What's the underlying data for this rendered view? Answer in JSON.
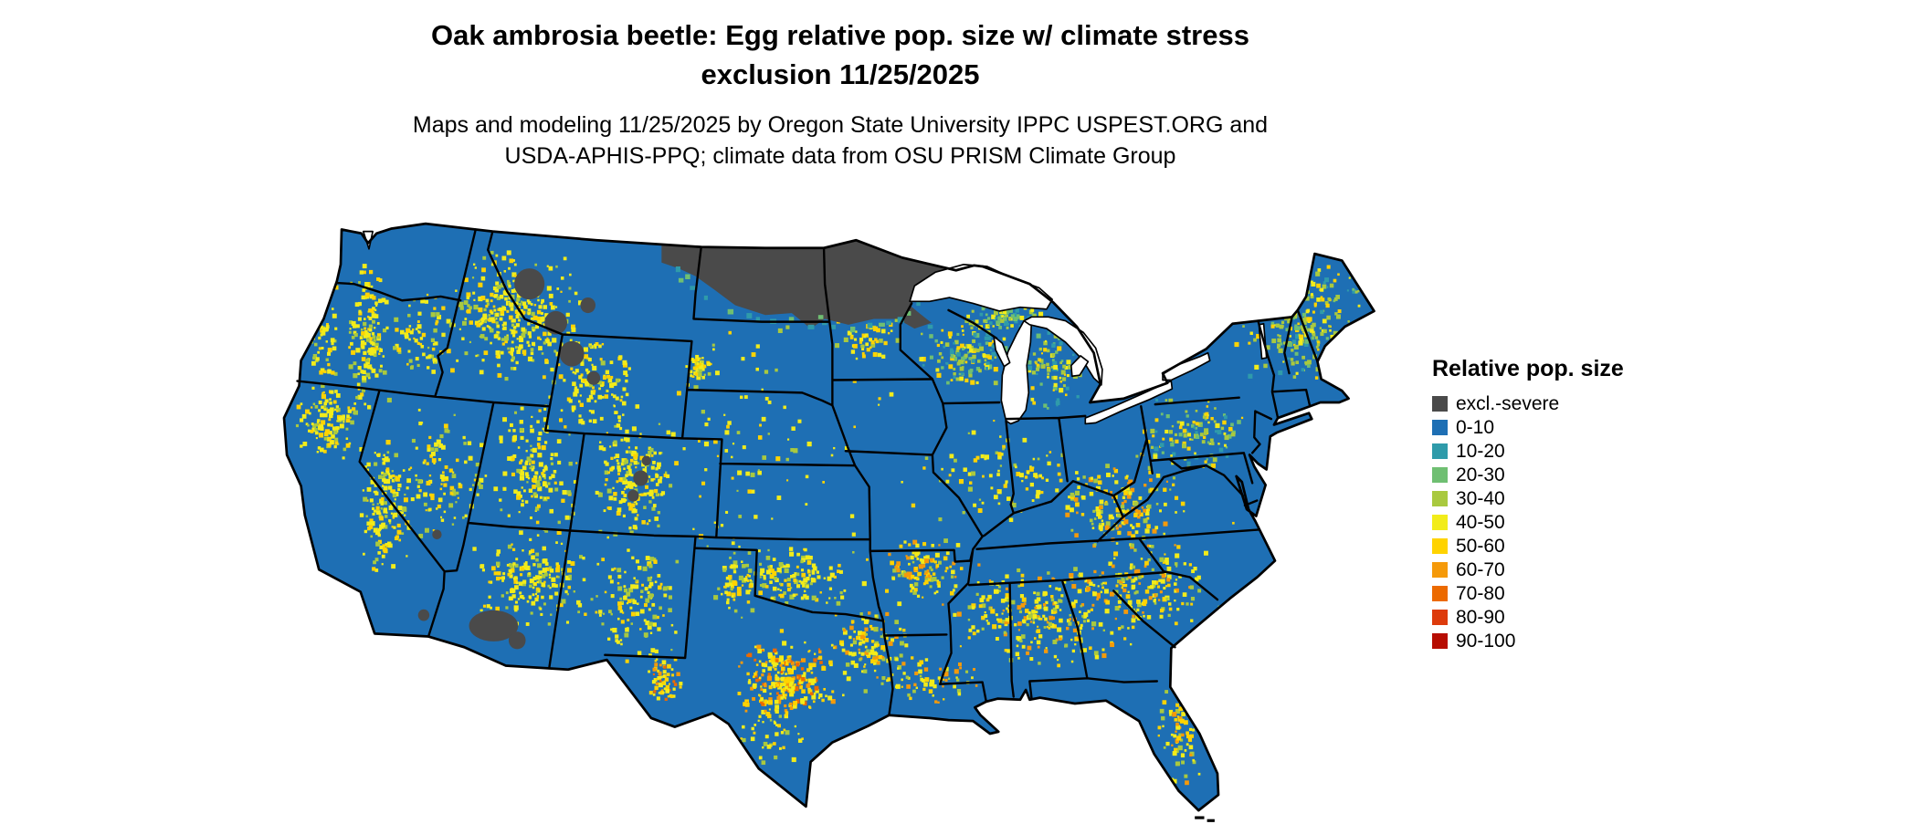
{
  "header": {
    "title_line1": "Oak ambrosia beetle: Egg relative pop. size w/ climate stress",
    "title_line2": "exclusion 11/25/2025",
    "subtitle_line1": "Maps and modeling 11/25/2025 by Oregon State University IPPC USPEST.ORG and",
    "subtitle_line2": "USDA-APHIS-PPQ; climate data from OSU PRISM Climate Group"
  },
  "legend": {
    "title": "Relative pop. size",
    "items": [
      {
        "label": "excl.-severe",
        "color": "#4A4A4A"
      },
      {
        "label": "0-10",
        "color": "#1E6FB4"
      },
      {
        "label": "10-20",
        "color": "#2F9BAA"
      },
      {
        "label": "20-30",
        "color": "#6FBF72"
      },
      {
        "label": "30-40",
        "color": "#A9C93F"
      },
      {
        "label": "40-50",
        "color": "#F2EC1A"
      },
      {
        "label": "50-60",
        "color": "#FFD300"
      },
      {
        "label": "60-70",
        "color": "#F59A0A"
      },
      {
        "label": "70-80",
        "color": "#EC6A00"
      },
      {
        "label": "80-90",
        "color": "#DD3B0C"
      },
      {
        "label": "90-100",
        "color": "#B70D02"
      }
    ]
  },
  "map": {
    "background_color": "#FFFFFF",
    "water_color": "#FFFFFF",
    "state_border_color": "#000000"
  }
}
